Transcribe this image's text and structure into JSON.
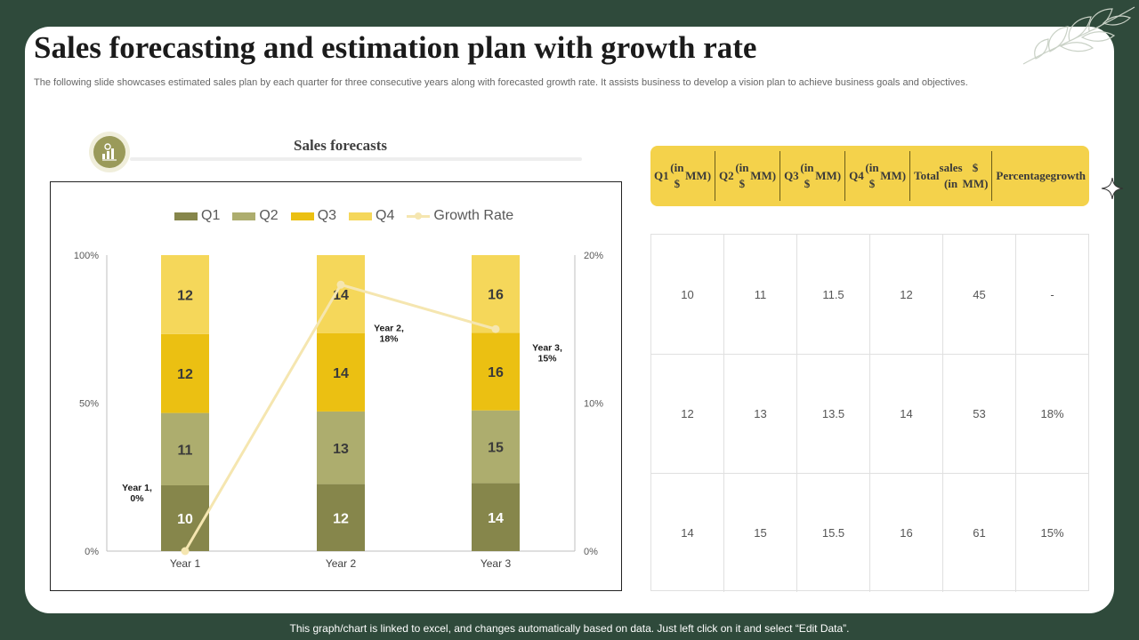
{
  "page": {
    "title": "Sales forecasting and estimation plan with growth rate",
    "subtitle": "The following slide showcases estimated sales plan by each quarter for three consecutive years along with forecasted growth rate. It assists business to develop a vision plan to achieve business goals and objectives.",
    "footer": "This graph/chart is linked to excel, and changes automatically based on data. Just left click on it and select “Edit Data”."
  },
  "chart_section": {
    "label": "Sales forecasts",
    "icon": "chart-growth-icon"
  },
  "colors": {
    "background": "#2f4a3b",
    "q1": "#86864b",
    "q2": "#adad6e",
    "q3": "#ebc012",
    "q4": "#f5d75a",
    "growth": "#f5e6b0",
    "table_header": "#f4d24b"
  },
  "chart_data": {
    "type": "bar",
    "stacked": "100%",
    "categories": [
      "Year 1",
      "Year 2",
      "Year 3"
    ],
    "series": [
      {
        "name": "Q1",
        "values": [
          10,
          12,
          14
        ]
      },
      {
        "name": "Q2",
        "values": [
          11,
          13,
          15
        ]
      },
      {
        "name": "Q3",
        "values": [
          12,
          14,
          16
        ]
      },
      {
        "name": "Q4",
        "values": [
          12,
          14,
          16
        ]
      }
    ],
    "line_series": {
      "name": "Growth Rate",
      "values": [
        0,
        18,
        15
      ],
      "axis": "secondary"
    },
    "primary_ylim": [
      0,
      100
    ],
    "primary_ticks": [
      "0%",
      "50%",
      "100%"
    ],
    "secondary_ylim": [
      0,
      20
    ],
    "secondary_ticks": [
      "0%",
      "10%",
      "20%"
    ],
    "annotations": [
      {
        "category": "Year 1",
        "line1": "Year 1,",
        "line2": "0%"
      },
      {
        "category": "Year 2",
        "line1": "Year 2,",
        "line2": "18%"
      },
      {
        "category": "Year 3",
        "line1": "Year 3,",
        "line2": "15%"
      }
    ],
    "legend_position": "top",
    "grid": false
  },
  "table": {
    "headers": [
      [
        "Q1",
        "(in $",
        "MM)"
      ],
      [
        "Q2",
        "(in $",
        "MM)"
      ],
      [
        "Q3",
        "(in $",
        "MM)"
      ],
      [
        "Q4",
        "(in $",
        "MM)"
      ],
      [
        "Total",
        "sales (in",
        "$ MM)"
      ],
      [
        "Percentage",
        "growth"
      ]
    ],
    "rows": [
      [
        "10",
        "11",
        "11.5",
        "12",
        "45",
        "-"
      ],
      [
        "12",
        "13",
        "13.5",
        "14",
        "53",
        "18%"
      ],
      [
        "14",
        "15",
        "15.5",
        "16",
        "61",
        "15%"
      ]
    ]
  }
}
